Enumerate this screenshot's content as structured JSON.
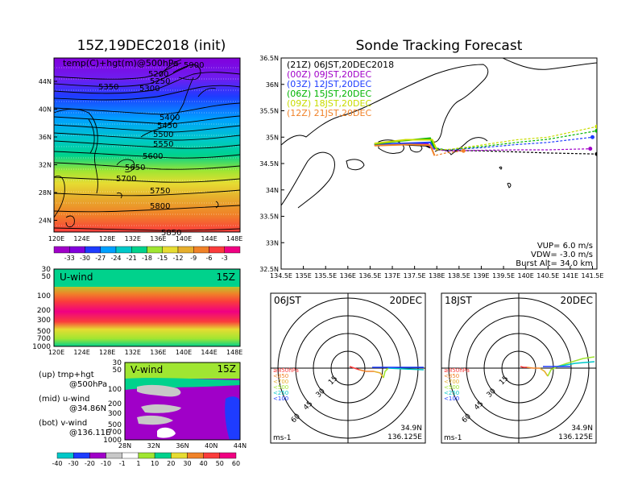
{
  "left_title": "15Z,19DEC2018 (init)",
  "right_title": "Sonde Tracking Forecast",
  "map_panel": {
    "overlay_text": "temp(C)+hgt(m)@500hPa",
    "y_ticks": [
      "44N",
      "40N",
      "36N",
      "32N",
      "28N",
      "24N"
    ],
    "x_ticks": [
      "120E",
      "124E",
      "128E",
      "132E",
      "136E",
      "140E",
      "144E",
      "148E"
    ],
    "contour_labels": [
      "5200",
      "5250",
      "5300",
      "5350",
      "5400",
      "5450",
      "5500",
      "5550",
      "5600",
      "5650",
      "5700",
      "5750",
      "5800",
      "5850",
      "5900"
    ],
    "colorbar": {
      "labels": [
        "-33",
        "-30",
        "-27",
        "-24",
        "-21",
        "-18",
        "-15",
        "-12",
        "-9",
        "-6",
        "-3"
      ],
      "colors": [
        "#a000c8",
        "#8200dc",
        "#1e3cff",
        "#00a0ff",
        "#00c8c8",
        "#00d28c",
        "#a0e632",
        "#e6dc32",
        "#e6af2d",
        "#f08228",
        "#fa3c3c",
        "#f00082"
      ]
    }
  },
  "uwind_panel": {
    "label": "U-wind",
    "time": "15Z",
    "y_ticks": [
      "30",
      "50",
      "100",
      "200",
      "300",
      "500",
      "700",
      "1000"
    ],
    "x_ticks": [
      "120E",
      "124E",
      "128E",
      "132E",
      "136E",
      "140E",
      "144E",
      "148E"
    ]
  },
  "vwind_panel": {
    "label": "V-wind",
    "time": "15Z",
    "y_ticks": [
      "30",
      "50",
      "100",
      "200",
      "300",
      "500",
      "700",
      "1000"
    ],
    "x_ticks": [
      "28N",
      "32N",
      "36N",
      "40N",
      "44N"
    ]
  },
  "notes": [
    {
      "a": "(up) tmp+hgt",
      "b": "@500hPa"
    },
    {
      "a": "(mid) u-wind",
      "b": "@34.86N"
    },
    {
      "a": "(bot) v-wind",
      "b": "@136.11E"
    }
  ],
  "wind_colorbar": {
    "labels": [
      "-40",
      "-30",
      "-20",
      "-10",
      "-1",
      "1",
      "10",
      "20",
      "30",
      "40",
      "50",
      "60"
    ],
    "colors": [
      "#00c8c8",
      "#1e3cff",
      "#a000c8",
      "#c8c8c8",
      "#ffffff",
      "#a0e632",
      "#00d28c",
      "#e6dc32",
      "#f08228",
      "#fa3c3c",
      "#f00082"
    ]
  },
  "track_panel": {
    "y_ticks": [
      "36.5N",
      "36N",
      "35.5N",
      "35N",
      "34.5N",
      "34N",
      "33.5N",
      "33N",
      "32.5N"
    ],
    "x_ticks": [
      "134.5E",
      "135E",
      "135.5E",
      "136E",
      "136.5E",
      "137E",
      "137.5E",
      "138E",
      "138.5E",
      "139E",
      "139.5E",
      "140E",
      "140.5E",
      "141E",
      "141.5E"
    ],
    "legend": [
      {
        "text": "(21Z) 06JST,20DEC2018",
        "color": "#000000"
      },
      {
        "text": "(00Z) 09JST,20DEC",
        "color": "#a000c8"
      },
      {
        "text": "(03Z) 12JST,20DEC",
        "color": "#1e3cff"
      },
      {
        "text": "(06Z) 15JST,20DEC",
        "color": "#00b400"
      },
      {
        "text": "(09Z) 18JST,20DEC",
        "color": "#c8dc00"
      },
      {
        "text": "(12Z) 21JST,20DEC",
        "color": "#f08228"
      }
    ],
    "params": [
      "VUP= 6.0 m/s",
      "VDW= -3.0 m/s",
      "Burst Alt= 34.0 km"
    ]
  },
  "polar_left": {
    "time": "06JST",
    "date": "20DEC",
    "rings": [
      "15",
      "30",
      "45",
      "60"
    ],
    "levels": [
      {
        "text": "≥850hPa",
        "color": "#fa3c3c"
      },
      {
        "text": "<850",
        "color": "#f08228"
      },
      {
        "text": "<700",
        "color": "#e6af2d"
      },
      {
        "text": "<500",
        "color": "#a0e632"
      },
      {
        "text": "<250",
        "color": "#00c8c8"
      },
      {
        "text": "<100",
        "color": "#1e3cff"
      }
    ],
    "unit": "ms-1",
    "lat": "34.9N",
    "lon": "136.125E"
  },
  "polar_right": {
    "time": "18JST",
    "date": "20DEC",
    "rings": [
      "15",
      "30",
      "45",
      "60"
    ],
    "levels": [
      {
        "text": "≥850hPa",
        "color": "#fa3c3c"
      },
      {
        "text": "<850",
        "color": "#f08228"
      },
      {
        "text": "<700",
        "color": "#e6af2d"
      },
      {
        "text": "<500",
        "color": "#a0e632"
      },
      {
        "text": "<250",
        "color": "#00c8c8"
      },
      {
        "text": "<100",
        "color": "#1e3cff"
      }
    ],
    "unit": "ms-1",
    "lat": "34.9N",
    "lon": "136.125E"
  },
  "chart_data": [
    {
      "type": "heatmap",
      "title": "15Z,19DEC2018 (init)",
      "xlabel": "",
      "ylabel": "",
      "xlim": [
        120,
        149
      ],
      "ylim": [
        22,
        47
      ],
      "note": "temp(C)+hgt(m)@500hPa"
    },
    {
      "type": "heatmap",
      "xlim": [
        120,
        149
      ],
      "ylim": [
        1000,
        30
      ]
    },
    {
      "type": "heatmap",
      "xlim": [
        28,
        44
      ],
      "ylim": [
        1000,
        30
      ]
    },
    {
      "type": "line",
      "title": "Sonde Tracking Forecast",
      "xlim": [
        134.5,
        141.6
      ],
      "ylim": [
        32.5,
        36.5
      ],
      "series": [
        {
          "name": "(21Z) 06JST,20DEC2018",
          "x": [
            136.6,
            137.2,
            137.75,
            137.85,
            138.2,
            139,
            139.8,
            140.5,
            141.6
          ],
          "y": [
            34.85,
            34.86,
            34.84,
            34.8,
            34.75,
            34.74,
            34.72,
            34.7,
            34.68
          ]
        },
        {
          "name": "(00Z) 09JST,20DEC",
          "x": [
            136.6,
            137.2,
            137.8,
            137.9,
            138.2,
            139,
            139.8,
            140.5,
            141.45
          ],
          "y": [
            34.86,
            34.87,
            34.87,
            34.78,
            34.74,
            34.75,
            34.76,
            34.76,
            34.78
          ]
        },
        {
          "name": "(03Z) 12JST,20DEC",
          "x": [
            136.6,
            137.2,
            137.85,
            137.95,
            138.2,
            139,
            139.8,
            140.5,
            141.5
          ],
          "y": [
            34.86,
            34.88,
            34.9,
            34.78,
            34.76,
            34.8,
            34.86,
            34.9,
            35.0
          ]
        },
        {
          "name": "(06Z) 15JST,20DEC",
          "x": [
            136.6,
            137.2,
            137.85,
            137.95,
            138.2,
            139,
            139.8,
            140.5,
            141.6
          ],
          "y": [
            34.87,
            34.93,
            34.98,
            34.8,
            34.76,
            34.82,
            34.9,
            34.96,
            35.12
          ]
        },
        {
          "name": "(09Z) 18JST,20DEC",
          "x": [
            136.6,
            137.3,
            137.9,
            138,
            138.3,
            139,
            139.8,
            140.5,
            141.6
          ],
          "y": [
            34.88,
            34.95,
            34.95,
            34.76,
            34.77,
            34.85,
            34.95,
            35.0,
            35.2
          ]
        },
        {
          "name": "(12Z) 21JST,20DEC",
          "x": [
            136.6,
            137.4,
            137.85,
            137.95,
            138.2,
            138.6
          ],
          "y": [
            34.84,
            34.86,
            34.85,
            34.65,
            34.7,
            34.74
          ]
        }
      ]
    }
  ]
}
